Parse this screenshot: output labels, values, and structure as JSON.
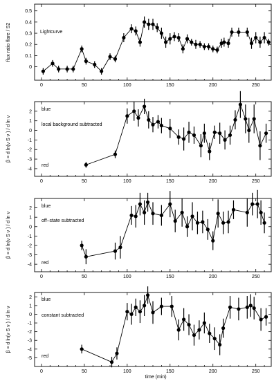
{
  "figure": {
    "xlabel": "time (min)",
    "x_ticks": [
      0,
      50,
      100,
      150,
      200,
      250
    ]
  },
  "chart_data": [
    {
      "type": "line",
      "panel_label": "Lightcurve",
      "ylabel": "flux ratio flare / S2",
      "xlim": [
        -8,
        268
      ],
      "ylim": [
        -0.12,
        0.56
      ],
      "y_ticks": [
        0,
        0.1,
        0.2,
        0.3,
        0.4,
        0.5
      ],
      "annotations": [],
      "x": [
        2,
        13,
        20,
        30,
        37,
        47,
        52,
        62,
        70,
        80,
        86,
        96,
        105,
        110,
        115,
        120,
        125,
        130,
        135,
        140,
        145,
        150,
        155,
        160,
        165,
        170,
        175,
        180,
        185,
        190,
        195,
        200,
        205,
        210,
        213,
        218,
        222,
        230,
        240,
        245,
        250,
        255,
        260,
        265
      ],
      "y": [
        -0.04,
        0.03,
        -0.02,
        -0.02,
        -0.02,
        0.16,
        0.05,
        0.02,
        -0.04,
        0.09,
        0.07,
        0.26,
        0.34,
        0.32,
        0.22,
        0.4,
        0.38,
        0.38,
        0.35,
        0.3,
        0.22,
        0.25,
        0.27,
        0.26,
        0.16,
        0.25,
        0.22,
        0.2,
        0.2,
        0.18,
        0.18,
        0.16,
        0.15,
        0.21,
        0.22,
        0.21,
        0.31,
        0.31,
        0.31,
        0.21,
        0.26,
        0.22,
        0.26,
        0.22
      ],
      "yerr": [
        0.03,
        0.03,
        0.03,
        0.03,
        0.03,
        0.03,
        0.03,
        0.03,
        0.03,
        0.03,
        0.03,
        0.04,
        0.04,
        0.04,
        0.04,
        0.05,
        0.05,
        0.05,
        0.04,
        0.05,
        0.05,
        0.05,
        0.04,
        0.04,
        0.04,
        0.04,
        0.03,
        0.04,
        0.03,
        0.03,
        0.03,
        0.03,
        0.03,
        0.04,
        0.04,
        0.04,
        0.04,
        0.04,
        0.04,
        0.05,
        0.05,
        0.05,
        0.05,
        0.03
      ]
    },
    {
      "type": "line",
      "panel_label": "local background subtracted",
      "ylabel": "β = d ln(ν S ν ) / d ln ν",
      "xlim": [
        -8,
        268
      ],
      "ylim": [
        -4.8,
        3.0
      ],
      "y_ticks": [
        -4,
        -3,
        -2,
        -1,
        0,
        1,
        2
      ],
      "annotations": [
        "blue",
        "red"
      ],
      "x": [
        52,
        86,
        100,
        108,
        113,
        120,
        125,
        130,
        136,
        140,
        150,
        160,
        166,
        172,
        178,
        186,
        190,
        196,
        202,
        208,
        214,
        220,
        226,
        232,
        238,
        242,
        248,
        255,
        262
      ],
      "y": [
        -3.6,
        -2.5,
        1.5,
        2.0,
        1.3,
        2.5,
        1.1,
        0.6,
        0.9,
        0.5,
        0.2,
        -0.7,
        -0.9,
        -0.2,
        -0.5,
        -1.6,
        -0.3,
        -2.2,
        -0.2,
        -0.3,
        -1.0,
        -0.5,
        1.1,
        2.7,
        1.2,
        0.0,
        1.2,
        -1.6,
        -0.3
      ],
      "yerr": [
        0.3,
        0.4,
        0.8,
        1.0,
        0.9,
        0.8,
        0.9,
        0.8,
        0.7,
        0.8,
        1.0,
        0.8,
        1.2,
        1.1,
        0.9,
        1.2,
        1.0,
        0.9,
        0.7,
        1.1,
        1.0,
        1.0,
        1.0,
        1.4,
        1.5,
        1.3,
        1.5,
        1.5,
        1.0
      ]
    },
    {
      "type": "line",
      "panel_label": "off–state subtracted",
      "ylabel": "β = d ln(ν S ν ) / d ln ν",
      "xlim": [
        -8,
        268
      ],
      "ylim": [
        -4.8,
        3.0
      ],
      "y_ticks": [
        -4,
        -3,
        -2,
        -1,
        0,
        1,
        2
      ],
      "annotations": [
        "blue",
        "red"
      ],
      "x": [
        47,
        52,
        86,
        92,
        105,
        110,
        115,
        120,
        124,
        130,
        140,
        150,
        156,
        164,
        170,
        176,
        182,
        188,
        194,
        200,
        206,
        212,
        218,
        224,
        240,
        246,
        252,
        256,
        260
      ],
      "y": [
        -2.0,
        -3.2,
        -2.6,
        -2.2,
        1.2,
        1.1,
        2.4,
        1.5,
        2.6,
        1.4,
        1.2,
        2.4,
        0.6,
        1.5,
        0.0,
        1.1,
        0.4,
        0.5,
        -0.3,
        -1.5,
        1.4,
        0.4,
        0.5,
        1.8,
        1.5,
        2.4,
        2.4,
        1.5,
        0.4
      ],
      "yerr": [
        0.5,
        0.8,
        0.9,
        1.2,
        1.0,
        1.2,
        1.2,
        1.3,
        1.0,
        1.2,
        1.1,
        1.4,
        1.2,
        1.5,
        1.1,
        1.5,
        1.2,
        1.2,
        1.1,
        1.0,
        1.5,
        1.2,
        1.2,
        1.0,
        1.5,
        1.2,
        1.5,
        1.3,
        1.1
      ]
    },
    {
      "type": "line",
      "panel_label": "constant subtracted",
      "ylabel": "β = d ln(ν S ν ) / d ln ν",
      "xlim": [
        -8,
        268
      ],
      "ylim": [
        -6.0,
        2.5
      ],
      "y_ticks": [
        -5,
        -4,
        -3,
        -2,
        -1,
        0,
        1,
        2
      ],
      "annotations": [
        "blue",
        "red"
      ],
      "x": [
        47,
        82,
        88,
        100,
        105,
        110,
        115,
        120,
        124,
        130,
        140,
        152,
        160,
        166,
        172,
        178,
        184,
        190,
        196,
        202,
        208,
        212,
        220,
        230,
        240,
        244,
        248,
        256,
        262
      ],
      "y": [
        -4.0,
        -5.5,
        -4.5,
        0.3,
        0.0,
        0.8,
        0.3,
        1.0,
        2.2,
        0.2,
        0.9,
        0.9,
        -1.8,
        -0.6,
        -1.2,
        -2.4,
        -1.8,
        -1.0,
        -2.2,
        -2.8,
        -3.5,
        -1.6,
        0.8,
        0.6,
        0.8,
        1.0,
        0.7,
        -0.6,
        -0.3
      ],
      "yerr": [
        0.5,
        0.6,
        0.7,
        1.0,
        1.2,
        1.0,
        1.3,
        1.2,
        1.0,
        1.3,
        1.0,
        1.2,
        1.2,
        1.3,
        1.2,
        1.2,
        1.1,
        1.2,
        1.1,
        1.3,
        1.2,
        1.1,
        1.3,
        1.3,
        1.3,
        1.3,
        1.3,
        1.3,
        1.0
      ]
    }
  ]
}
